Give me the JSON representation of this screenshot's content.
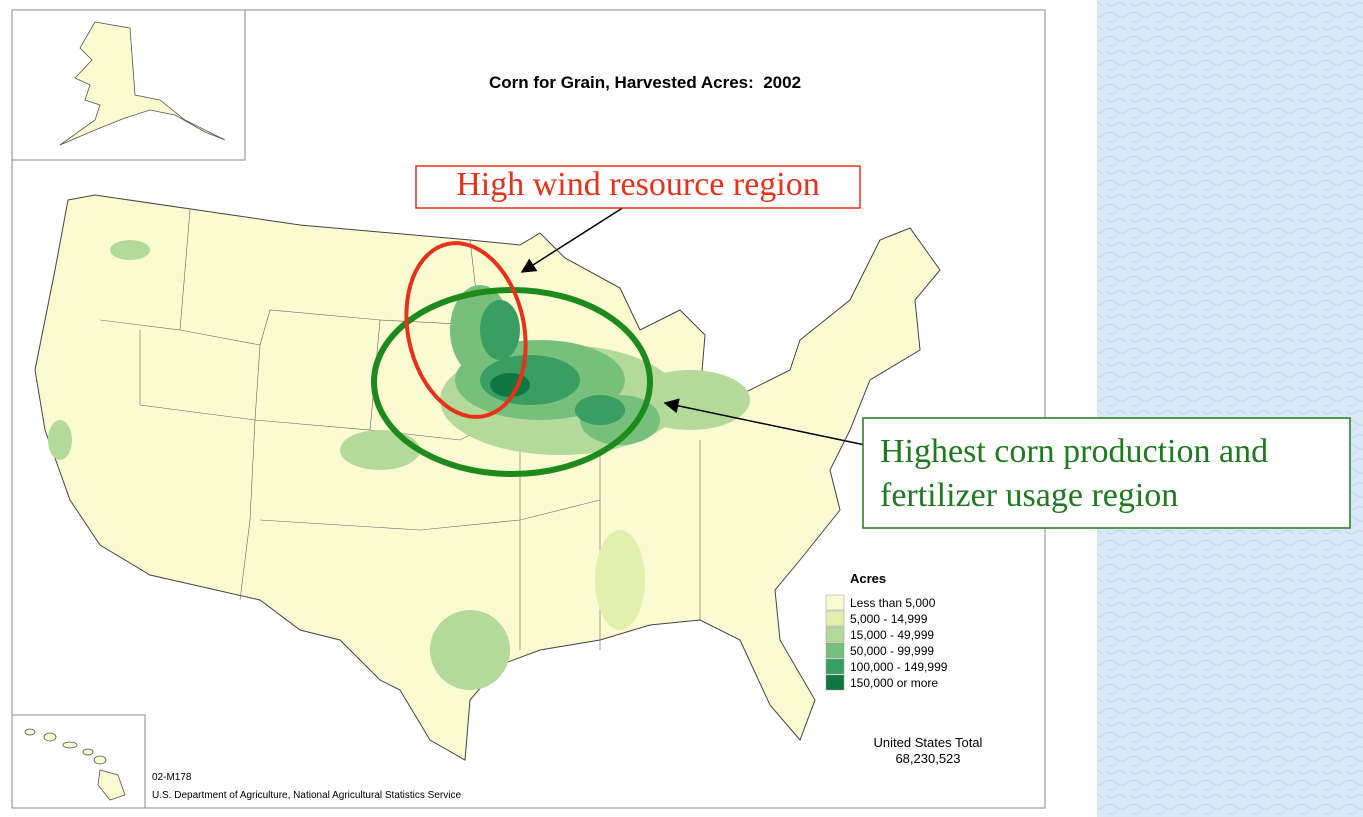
{
  "title": "Corn for Grain, Harvested Acres:  2002",
  "legend": {
    "title": "Acres",
    "items": [
      {
        "label": "Less than 5,000",
        "color": "#fbfbd2"
      },
      {
        "label": "5,000 - 14,999",
        "color": "#e3efae"
      },
      {
        "label": "15,000 - 49,999",
        "color": "#b3da98"
      },
      {
        "label": "50,000 - 99,999",
        "color": "#76c07c"
      },
      {
        "label": "100,000 - 149,999",
        "color": "#3a9d62"
      },
      {
        "label": "150,000 or more",
        "color": "#0f7641"
      }
    ]
  },
  "total": {
    "label": "United States Total",
    "value": "68,230,523"
  },
  "source": {
    "code": "02-M178",
    "agency": "U.S. Department of Agriculture, National Agricultural Statistics Service"
  },
  "annotations": [
    {
      "text": "High wind resource region"
    },
    {
      "lines": [
        "Highest corn production and",
        "fertilizer usage region"
      ]
    }
  ]
}
